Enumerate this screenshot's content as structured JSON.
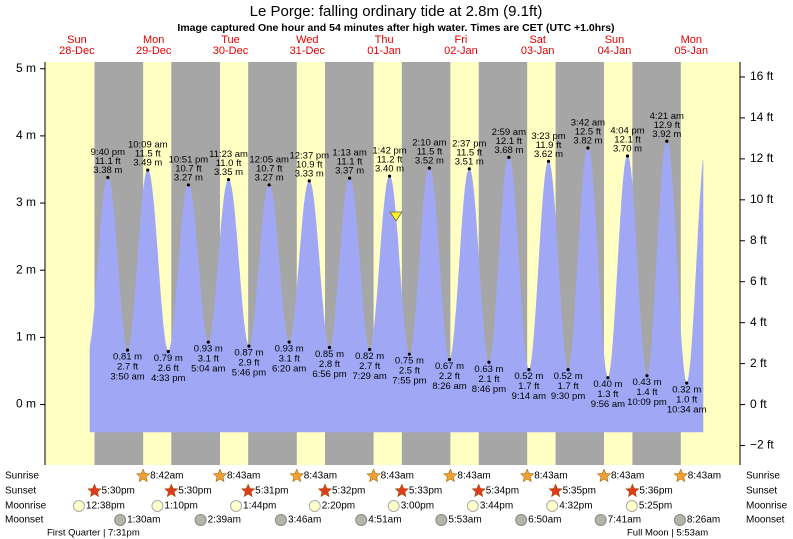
{
  "title": "Le Porge: falling  ordinary tide at 2.8m (9.1ft)",
  "subtitle": "Image captured One hour and 54 minutes after high water. Times are CET (UTC +1.0hrs)",
  "rows": {
    "sunrise": "Sunrise",
    "sunset": "Sunset",
    "moonrise": "Moonrise",
    "moonset": "Moonset"
  },
  "moon_phases": [
    "First Quarter | 7:31pm",
    "Full Moon | 5:53am"
  ],
  "chart_data": {
    "type": "tide",
    "ylim": [
      -0.9,
      5.1
    ],
    "yticks": [
      {
        "value": 0,
        "label": "0 m"
      },
      {
        "value": 1,
        "label": "1 m"
      },
      {
        "value": 2,
        "label": "2 m"
      },
      {
        "value": 3,
        "label": "3 m"
      },
      {
        "value": 4,
        "label": "4 m"
      },
      {
        "value": 5,
        "label": "5 m"
      }
    ],
    "y2lim": [
      -2.95,
      16.73
    ],
    "y2ticks": [
      {
        "value": -2,
        "label": "−2 ft"
      },
      {
        "value": 0,
        "label": "0 ft"
      },
      {
        "value": 2,
        "label": "2 ft"
      },
      {
        "value": 4,
        "label": "4 ft"
      },
      {
        "value": 6,
        "label": "6 ft"
      },
      {
        "value": 8,
        "label": "8 ft"
      },
      {
        "value": 10,
        "label": "10 ft"
      },
      {
        "value": 12,
        "label": "12 ft"
      },
      {
        "value": 14,
        "label": "14 ft"
      },
      {
        "value": 16,
        "label": "16 ft"
      }
    ],
    "days": [
      {
        "day": "Sun",
        "date": "28-Dec",
        "sunset": "5:30pm",
        "moonrise": "12:38pm",
        "highs": [
          {
            "time": "9:40 pm",
            "m": 3.38,
            "m_label": "3.38 m",
            "ft": 11.1,
            "ft_label": "11.1 ft"
          }
        ],
        "lows": []
      },
      {
        "day": "Mon",
        "date": "29-Dec",
        "sunrise": "8:42am",
        "sunset": "5:30pm",
        "moonrise": "1:10pm",
        "moonset": "1:30am",
        "highs": [
          {
            "time": "10:09 am",
            "m": 3.49,
            "m_label": "3.49 m",
            "ft": 11.5,
            "ft_label": "11.5 ft"
          },
          {
            "time": "10:51 pm",
            "m": 3.27,
            "m_label": "3.27 m",
            "ft": 10.7,
            "ft_label": "10.7 ft"
          }
        ],
        "lows": [
          {
            "time": "3:50 am",
            "m": 0.81,
            "m_label": "0.81 m",
            "ft": 2.7,
            "ft_label": "2.7 ft"
          },
          {
            "time": "4:33 pm",
            "m": 0.79,
            "m_label": "0.79 m",
            "ft": 2.6,
            "ft_label": "2.6 ft"
          }
        ]
      },
      {
        "day": "Tue",
        "date": "30-Dec",
        "sunrise": "8:43am",
        "sunset": "5:31pm",
        "moonrise": "1:44pm",
        "moonset": "2:39am",
        "highs": [
          {
            "time": "11:23 am",
            "m": 3.35,
            "m_label": "3.35 m",
            "ft": 11.0,
            "ft_label": "11.0 ft"
          }
        ],
        "lows": [
          {
            "time": "5:04 am",
            "m": 0.93,
            "m_label": "0.93 m",
            "ft": 3.1,
            "ft_label": "3.1 ft"
          },
          {
            "time": "5:46 pm",
            "m": 0.87,
            "m_label": "0.87 m",
            "ft": 2.9,
            "ft_label": "2.9 ft"
          }
        ]
      },
      {
        "day": "Wed",
        "date": "31-Dec",
        "sunrise": "8:43am",
        "sunset": "5:32pm",
        "moonrise": "2:20pm",
        "moonset": "3:46am",
        "highs": [
          {
            "time": "12:05 am",
            "m": 3.27,
            "m_label": "3.27 m",
            "ft": 10.7,
            "ft_label": "10.7 ft"
          },
          {
            "time": "12:37 pm",
            "m": 3.33,
            "m_label": "3.33 m",
            "ft": 10.9,
            "ft_label": "10.9 ft"
          }
        ],
        "lows": [
          {
            "time": "6:20 am",
            "m": 0.93,
            "m_label": "0.93 m",
            "ft": 3.1,
            "ft_label": "3.1 ft"
          },
          {
            "time": "6:56 pm",
            "m": 0.85,
            "m_label": "0.85 m",
            "ft": 2.8,
            "ft_label": "2.8 ft"
          }
        ]
      },
      {
        "day": "Thu",
        "date": "01-Jan",
        "sunrise": "8:43am",
        "sunset": "5:33pm",
        "moonrise": "3:00pm",
        "moonset": "4:51am",
        "highs": [
          {
            "time": "1:13 am",
            "m": 3.37,
            "m_label": "3.37 m",
            "ft": 11.1,
            "ft_label": "11.1 ft"
          },
          {
            "time": "1:42 pm",
            "m": 3.4,
            "m_label": "3.40 m",
            "ft": 11.2,
            "ft_label": "11.2 ft"
          }
        ],
        "lows": [
          {
            "time": "7:29 am",
            "m": 0.82,
            "m_label": "0.82 m",
            "ft": 2.7,
            "ft_label": "2.7 ft"
          },
          {
            "time": "7:55 pm",
            "m": 0.75,
            "m_label": "0.75 m",
            "ft": 2.5,
            "ft_label": "2.5 ft"
          }
        ]
      },
      {
        "day": "Fri",
        "date": "02-Jan",
        "sunrise": "8:43am",
        "sunset": "5:34pm",
        "moonrise": "3:44pm",
        "moonset": "5:53am",
        "highs": [
          {
            "time": "2:10 am",
            "m": 3.52,
            "m_label": "3.52 m",
            "ft": 11.5,
            "ft_label": "11.5 ft"
          },
          {
            "time": "2:37 pm",
            "m": 3.51,
            "m_label": "3.51 m",
            "ft": 11.5,
            "ft_label": "11.5 ft"
          }
        ],
        "lows": [
          {
            "time": "8:26 am",
            "m": 0.67,
            "m_label": "0.67 m",
            "ft": 2.2,
            "ft_label": "2.2 ft"
          },
          {
            "time": "8:46 pm",
            "m": 0.63,
            "m_label": "0.63 m",
            "ft": 2.1,
            "ft_label": "2.1 ft"
          }
        ]
      },
      {
        "day": "Sat",
        "date": "03-Jan",
        "sunrise": "8:43am",
        "sunset": "5:35pm",
        "moonrise": "4:32pm",
        "moonset": "6:50am",
        "highs": [
          {
            "time": "2:59 am",
            "m": 3.68,
            "m_label": "3.68 m",
            "ft": 12.1,
            "ft_label": "12.1 ft"
          },
          {
            "time": "3:23 pm",
            "m": 3.62,
            "m_label": "3.62 m",
            "ft": 11.9,
            "ft_label": "11.9 ft"
          }
        ],
        "lows": [
          {
            "time": "9:14 am",
            "m": 0.52,
            "m_label": "0.52 m",
            "ft": 1.7,
            "ft_label": "1.7 ft"
          },
          {
            "time": "9:30 pm",
            "m": 0.52,
            "m_label": "0.52 m",
            "ft": 1.7,
            "ft_label": "1.7 ft"
          }
        ]
      },
      {
        "day": "Sun",
        "date": "04-Jan",
        "sunrise": "8:43am",
        "sunset": "5:36pm",
        "moonrise": "5:25pm",
        "moonset": "7:41am",
        "highs": [
          {
            "time": "3:42 am",
            "m": 3.82,
            "m_label": "3.82 m",
            "ft": 12.5,
            "ft_label": "12.5 ft"
          },
          {
            "time": "4:04 pm",
            "m": 3.7,
            "m_label": "3.70 m",
            "ft": 12.1,
            "ft_label": "12.1 ft"
          }
        ],
        "lows": [
          {
            "time": "9:56 am",
            "m": 0.4,
            "m_label": "0.40 m",
            "ft": 1.3,
            "ft_label": "1.3 ft"
          },
          {
            "time": "10:09 pm",
            "m": 0.43,
            "m_label": "0.43 m",
            "ft": 1.4,
            "ft_label": "1.4 ft"
          }
        ]
      },
      {
        "day": "Mon",
        "date": "05-Jan",
        "sunrise": "8:43am",
        "moonset": "8:26am",
        "highs": [
          {
            "time": "4:21 am",
            "m": 3.92,
            "m_label": "3.92 m",
            "ft": 12.9,
            "ft_label": "12.9 ft"
          }
        ],
        "lows": [
          {
            "time": "10:34 am",
            "m": 0.32,
            "m_label": "0.32 m",
            "ft": 1.0,
            "ft_label": "1.0 ft"
          }
        ]
      }
    ]
  }
}
